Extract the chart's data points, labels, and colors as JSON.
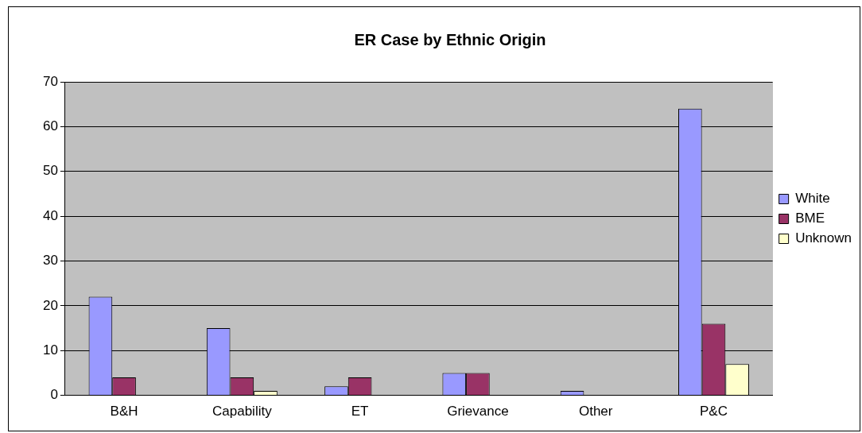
{
  "chart_data": {
    "type": "bar",
    "title": "ER Case by Ethnic Origin",
    "categories": [
      "B&H",
      "Capability",
      "ET",
      "Grievance",
      "Other",
      "P&C"
    ],
    "series": [
      {
        "name": "White",
        "color": "#9999ff",
        "values": [
          22,
          15,
          2,
          5,
          1,
          64
        ]
      },
      {
        "name": "BME",
        "color": "#993366",
        "values": [
          4,
          4,
          4,
          5,
          0,
          16
        ]
      },
      {
        "name": "Unknown",
        "color": "#ffffcc",
        "values": [
          0,
          1,
          0,
          0,
          0,
          7
        ]
      }
    ],
    "ylim": [
      0,
      70
    ],
    "yticks": [
      0,
      10,
      20,
      30,
      40,
      50,
      60,
      70
    ],
    "grid": "y",
    "legend": "right"
  }
}
